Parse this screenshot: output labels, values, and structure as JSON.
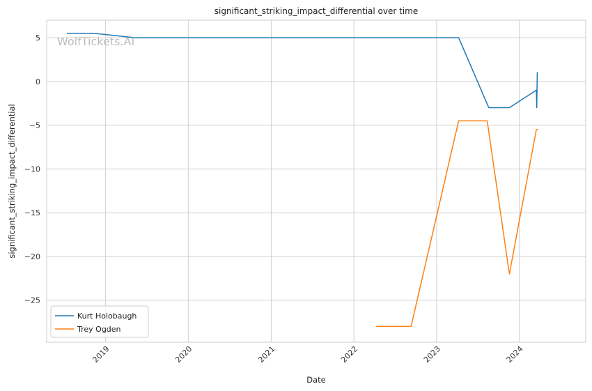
{
  "chart_data": {
    "type": "line",
    "title": "significant_striking_impact_differential over time",
    "xlabel": "Date",
    "ylabel": "significant_striking_impact_differential",
    "watermark": "WolfTickets.AI",
    "x_ticks": [
      "2019",
      "2020",
      "2021",
      "2022",
      "2023",
      "2024"
    ],
    "y_ticks": [
      5,
      0,
      -5,
      -10,
      -15,
      -20,
      -25
    ],
    "xlim": [
      "2018-04-16",
      "2024-10-20"
    ],
    "ylim": [
      -29.8,
      7.0
    ],
    "grid": true,
    "legend_position": "lower-left",
    "series": [
      {
        "name": "Kurt Holobaugh",
        "color": "#1f77b4",
        "points": [
          [
            "2018-07-14",
            5.5
          ],
          [
            "2018-11-10",
            5.5
          ],
          [
            "2019-05-11",
            5.0
          ],
          [
            "2023-04-08",
            5.0
          ],
          [
            "2023-08-19",
            -3.0
          ],
          [
            "2023-11-18",
            -3.0
          ],
          [
            "2024-03-16",
            -1.0
          ],
          [
            "2024-03-18",
            -3.0
          ],
          [
            "2024-03-20",
            1.0
          ],
          [
            "2024-03-23",
            1.0
          ]
        ]
      },
      {
        "name": "Trey Ogden",
        "color": "#ff7f0e",
        "points": [
          [
            "2022-04-09",
            -28.0
          ],
          [
            "2022-09-10",
            -28.0
          ],
          [
            "2023-04-08",
            -4.5
          ],
          [
            "2023-08-12",
            -4.5
          ],
          [
            "2023-11-18",
            -22.0
          ],
          [
            "2024-03-16",
            -5.5
          ],
          [
            "2024-03-23",
            -5.5
          ]
        ]
      }
    ]
  }
}
